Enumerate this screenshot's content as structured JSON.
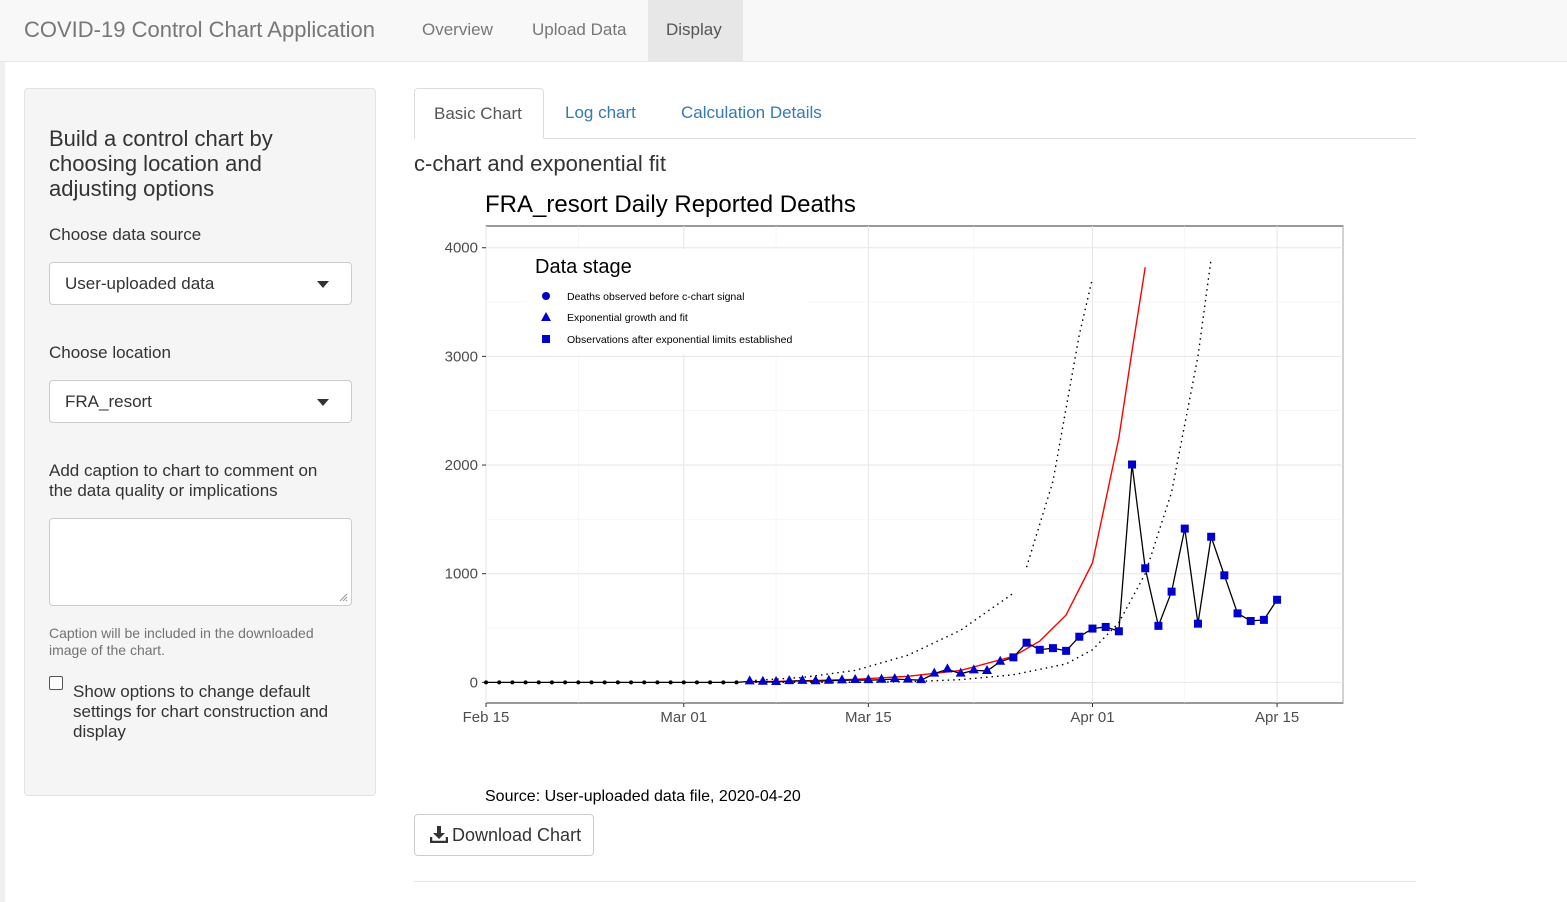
{
  "app": {
    "title": "COVID-19 Control Chart Application",
    "nav": [
      {
        "label": "Overview"
      },
      {
        "label": "Upload Data"
      },
      {
        "label": "Display"
      }
    ],
    "active_nav": "Display"
  },
  "sidebar": {
    "title": "Build a control chart by choosing location and adjusting options",
    "data_source": {
      "label": "Choose data source",
      "value": "User-uploaded data"
    },
    "location": {
      "label": "Choose location",
      "value": "FRA_resort"
    },
    "caption": {
      "label": "Add caption to chart to comment on the data quality or implications",
      "value": "",
      "help": "Caption will be included in the downloaded image of the chart."
    },
    "options_checkbox": {
      "label": "Show options to change default settings for chart construction and display",
      "checked": false
    }
  },
  "main": {
    "tabs": [
      {
        "label": "Basic Chart"
      },
      {
        "label": "Log chart"
      },
      {
        "label": "Calculation Details"
      }
    ],
    "active_tab": "Basic Chart",
    "subtitle": "c-chart and exponential fit",
    "source_note": "Source: User-uploaded data file, 2020-04-20",
    "download_label": "Download Chart"
  },
  "colors": {
    "marker": "#0000cd",
    "fit_line": "#ff0000",
    "limit_line": "#000000",
    "obs_line": "#000000"
  },
  "chart_data": {
    "type": "line",
    "title": "FRA_resort Daily Reported Deaths",
    "xlabel": "",
    "ylabel": "",
    "x_tick_labels": [
      "Feb 15",
      "Mar 01",
      "Mar 15",
      "Apr 01",
      "Apr 15"
    ],
    "y_tick_labels": [
      "0",
      "1000",
      "2000",
      "3000",
      "4000"
    ],
    "ylim": [
      -190,
      4200
    ],
    "xlim": [
      "2020-02-15",
      "2020-04-20"
    ],
    "grid": true,
    "legend": {
      "title": "Data stage",
      "position": "top-left",
      "entries": [
        {
          "label": "Deaths observed before c-chart signal",
          "shape": "circle"
        },
        {
          "label": "Exponential growth and fit",
          "shape": "triangle"
        },
        {
          "label": "Observations after exponential limits established",
          "shape": "square"
        }
      ]
    },
    "series": [
      {
        "name": "Deaths observed before c-chart signal",
        "shape": "circle",
        "dates": [
          "2020-02-15",
          "2020-02-16",
          "2020-02-17",
          "2020-02-18",
          "2020-02-19",
          "2020-02-20",
          "2020-02-21",
          "2020-02-22",
          "2020-02-23",
          "2020-02-24",
          "2020-02-25",
          "2020-02-26",
          "2020-02-27",
          "2020-02-28",
          "2020-02-29",
          "2020-03-01",
          "2020-03-02",
          "2020-03-03",
          "2020-03-04",
          "2020-03-05"
        ],
        "values": [
          0,
          0,
          0,
          0,
          0,
          0,
          0,
          0,
          0,
          0,
          0,
          0,
          0,
          0,
          0,
          0,
          0,
          0,
          0,
          0
        ]
      },
      {
        "name": "Exponential growth and fit",
        "shape": "triangle",
        "dates": [
          "2020-03-06",
          "2020-03-07",
          "2020-03-08",
          "2020-03-09",
          "2020-03-10",
          "2020-03-11",
          "2020-03-12",
          "2020-03-13",
          "2020-03-14",
          "2020-03-15",
          "2020-03-16",
          "2020-03-17",
          "2020-03-18",
          "2020-03-19",
          "2020-03-20",
          "2020-03-21",
          "2020-03-22",
          "2020-03-23",
          "2020-03-24",
          "2020-03-25"
        ],
        "values": [
          9,
          5,
          3,
          11,
          14,
          10,
          15,
          18,
          22,
          20,
          24,
          30,
          25,
          20,
          80,
          120,
          80,
          110,
          105,
          190
        ]
      },
      {
        "name": "Observations after exponential limits established",
        "shape": "square",
        "dates": [
          "2020-03-26",
          "2020-03-27",
          "2020-03-28",
          "2020-03-29",
          "2020-03-30",
          "2020-03-31",
          "2020-04-01",
          "2020-04-02",
          "2020-04-03",
          "2020-04-04",
          "2020-04-05",
          "2020-04-06",
          "2020-04-07",
          "2020-04-08",
          "2020-04-09",
          "2020-04-10",
          "2020-04-11",
          "2020-04-12",
          "2020-04-13",
          "2020-04-14",
          "2020-04-15"
        ],
        "values": [
          230,
          365,
          300,
          315,
          290,
          420,
          495,
          510,
          470,
          2005,
          1050,
          520,
          835,
          1415,
          540,
          1340,
          985,
          635,
          565,
          575,
          760
        ]
      }
    ],
    "fit_line": {
      "dates": [
        "2020-03-06",
        "2020-03-10",
        "2020-03-14",
        "2020-03-18",
        "2020-03-22",
        "2020-03-26",
        "2020-03-28",
        "2020-03-30",
        "2020-04-01",
        "2020-04-03",
        "2020-04-04",
        "2020-04-05"
      ],
      "values": [
        4,
        14,
        28,
        56,
        110,
        240,
        380,
        620,
        1100,
        2250,
        3050,
        3820
      ]
    },
    "limit_lines": [
      {
        "dates": [
          "2020-03-06",
          "2020-03-10",
          "2020-03-14",
          "2020-03-18",
          "2020-03-22",
          "2020-03-26"
        ],
        "values": [
          15,
          45,
          110,
          250,
          480,
          820
        ]
      },
      {
        "dates": [
          "2020-03-27",
          "2020-03-29",
          "2020-03-31",
          "2020-04-01"
        ],
        "values": [
          1060,
          1850,
          3200,
          3720
        ]
      },
      {
        "dates": [
          "2020-03-06",
          "2020-03-10",
          "2020-03-14",
          "2020-03-18",
          "2020-03-22",
          "2020-03-26",
          "2020-03-30",
          "2020-04-01",
          "2020-04-03",
          "2020-04-05",
          "2020-04-07",
          "2020-04-09",
          "2020-04-10"
        ],
        "values": [
          0,
          0,
          1,
          5,
          25,
          70,
          170,
          300,
          550,
          1000,
          1750,
          3000,
          3900
        ]
      }
    ]
  }
}
